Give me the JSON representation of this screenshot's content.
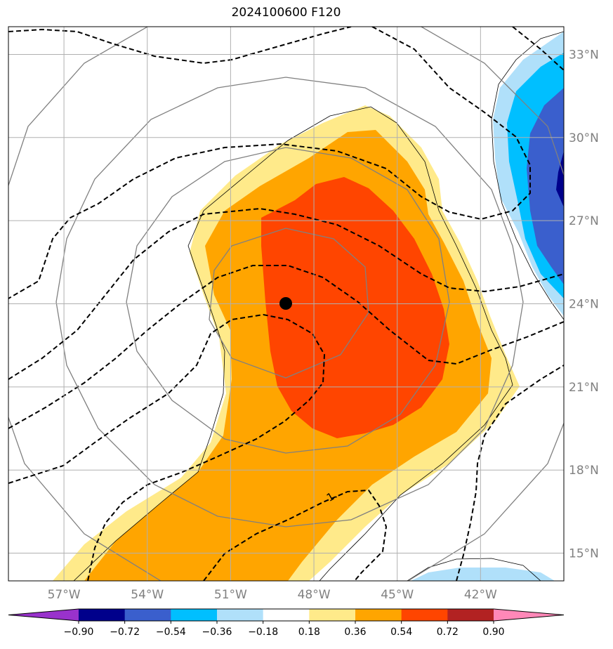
{
  "title": "2024100600 F120",
  "chart_data": {
    "type": "heatmap",
    "title": "2024100600 F120",
    "map_extent": {
      "lon_min": -59,
      "lon_max": -39,
      "lat_min": 14,
      "lat_max": 34
    },
    "lon_ticks": [
      {
        "value": -57,
        "label": "57°W"
      },
      {
        "value": -54,
        "label": "54°W"
      },
      {
        "value": -51,
        "label": "51°W"
      },
      {
        "value": -48,
        "label": "48°W"
      },
      {
        "value": -45,
        "label": "45°W"
      },
      {
        "value": -42,
        "label": "42°W"
      }
    ],
    "lat_ticks": [
      {
        "value": 33,
        "label": "33°N"
      },
      {
        "value": 30,
        "label": "30°N"
      },
      {
        "value": 27,
        "label": "27°N"
      },
      {
        "value": 24,
        "label": "24°N"
      },
      {
        "value": 21,
        "label": "21°N"
      },
      {
        "value": 18,
        "label": "18°N"
      },
      {
        "value": 15,
        "label": "15°N"
      }
    ],
    "grid": true,
    "center_marker": {
      "lon": -49,
      "lat": 24
    },
    "contour_label": "1.",
    "colorbar": {
      "orientation": "horizontal",
      "extend": "both",
      "levels": [
        -0.9,
        -0.72,
        -0.54,
        -0.36,
        -0.18,
        0.18,
        0.36,
        0.54,
        0.72,
        0.9
      ],
      "tick_labels": [
        "−0.90",
        "−0.72",
        "−0.54",
        "−0.36",
        "−0.18",
        "0.18",
        "0.36",
        "0.54",
        "0.72",
        "0.90"
      ],
      "colors": [
        "#9932cc",
        "#00008b",
        "#3a5fcd",
        "#00bfff",
        "#b0e0fa",
        "#ffffff",
        "#ffea8a",
        "#ffa500",
        "#ff4500",
        "#b22222",
        "#ff88b8"
      ]
    }
  }
}
